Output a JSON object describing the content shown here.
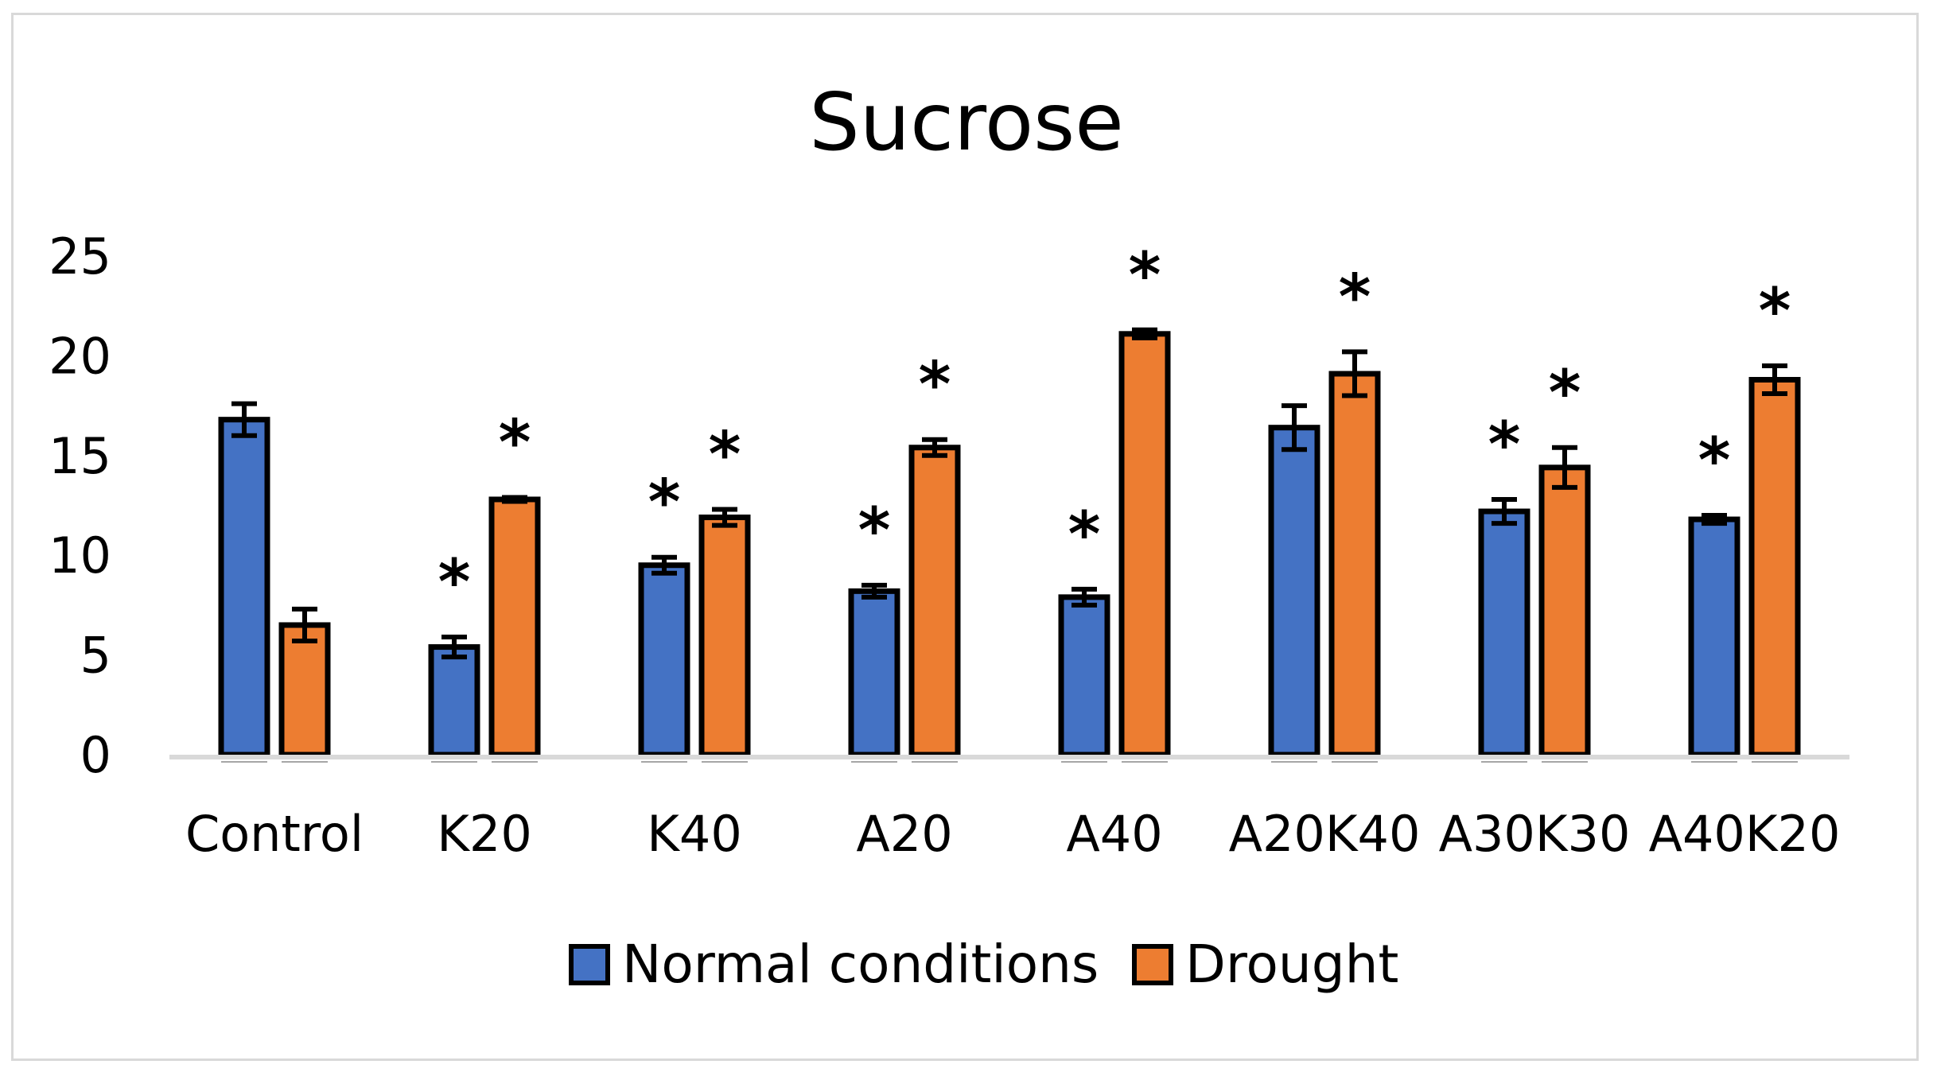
{
  "chart_data": {
    "type": "bar",
    "title": "Sucrose",
    "xlabel": "",
    "ylabel": "",
    "ylim": [
      0,
      25
    ],
    "yticks": [
      0,
      5,
      10,
      15,
      20,
      25
    ],
    "grid": false,
    "legend_position": "bottom",
    "categories": [
      "Control",
      "K20",
      "K40",
      "A20",
      "A40",
      "A20K40",
      "A30K30",
      "A40K20"
    ],
    "series": [
      {
        "name": "Normal conditions",
        "color": "#4472C4",
        "values": [
          16.8,
          5.4,
          9.5,
          8.2,
          7.9,
          16.4,
          12.2,
          11.8
        ],
        "errors": [
          0.8,
          0.5,
          0.4,
          0.3,
          0.4,
          1.1,
          0.6,
          0.2
        ],
        "significance": [
          "",
          "*",
          "*",
          "*",
          "*",
          "",
          "*",
          "*"
        ]
      },
      {
        "name": "Drought",
        "color": "#ED7D31",
        "values": [
          6.5,
          12.8,
          11.9,
          15.4,
          21.1,
          19.1,
          14.4,
          18.8
        ],
        "errors": [
          0.8,
          0.1,
          0.4,
          0.4,
          0.2,
          1.1,
          1.0,
          0.7
        ],
        "significance": [
          "",
          "*",
          "*",
          "*",
          "*",
          "*",
          "*",
          "*"
        ]
      }
    ]
  }
}
